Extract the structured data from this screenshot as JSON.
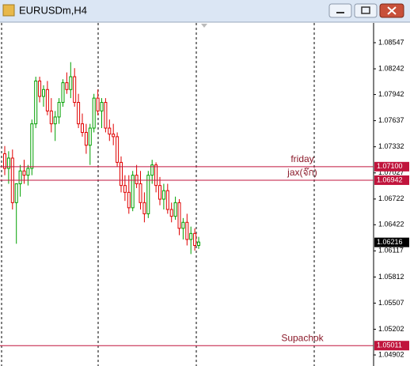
{
  "chart_data": {
    "type": "candlestick",
    "title": "EURUSDm,H4",
    "ylim": [
      1.04773,
      1.08787
    ],
    "yticks": [
      1.08547,
      1.08242,
      1.07942,
      1.07637,
      1.07332,
      1.07027,
      1.06722,
      1.06422,
      1.06117,
      1.05812,
      1.05507,
      1.05202,
      1.04902
    ],
    "up_color": "#00a000",
    "down_color": "#e00000",
    "open": [
      1.0725,
      1.0708,
      1.072,
      1.0668,
      1.069,
      1.0705,
      1.07,
      1.0708,
      1.076,
      1.081,
      1.0792,
      1.08,
      1.0775,
      1.076,
      1.0768,
      1.0785,
      1.0808,
      1.08,
      1.0815,
      1.0785,
      1.076,
      1.075,
      1.0735,
      1.0755,
      1.079,
      1.0775,
      1.0785,
      1.0755,
      1.0748,
      1.0745,
      1.0715,
      1.0688,
      1.068,
      1.0662,
      1.07,
      1.069,
      1.0668,
      1.0655,
      1.07,
      1.0712,
      1.0688,
      1.0672,
      1.0682,
      1.066,
      1.0652,
      1.0668,
      1.0638,
      1.0645,
      1.0625,
      1.0632,
      1.0618
    ],
    "high": [
      1.0734,
      1.0728,
      1.073,
      1.069,
      1.0712,
      1.0718,
      1.0712,
      1.0765,
      1.0815,
      1.0815,
      1.0805,
      1.081,
      1.079,
      1.0775,
      1.079,
      1.0812,
      1.082,
      1.0832,
      1.0825,
      1.0795,
      1.0772,
      1.076,
      1.076,
      1.0795,
      1.08,
      1.079,
      1.079,
      1.0765,
      1.076,
      1.075,
      1.0722,
      1.07,
      1.07,
      1.0705,
      1.0712,
      1.0705,
      1.068,
      1.0705,
      1.0718,
      1.0715,
      1.0698,
      1.069,
      1.069,
      1.0668,
      1.0675,
      1.0672,
      1.065,
      1.0655,
      1.064,
      1.0638,
      1.0628
    ],
    "low": [
      1.07,
      1.069,
      1.066,
      1.062,
      1.0675,
      1.069,
      1.0688,
      1.07,
      1.0755,
      1.0785,
      1.078,
      1.077,
      1.075,
      1.074,
      1.076,
      1.078,
      1.0795,
      1.079,
      1.078,
      1.0755,
      1.0745,
      1.0725,
      1.0712,
      1.075,
      1.077,
      1.0755,
      1.075,
      1.074,
      1.0735,
      1.071,
      1.068,
      1.067,
      1.0655,
      1.0658,
      1.0685,
      1.066,
      1.0645,
      1.065,
      1.069,
      1.068,
      1.0665,
      1.066,
      1.0655,
      1.0645,
      1.0648,
      1.063,
      1.0625,
      1.0618,
      1.0608,
      1.0612,
      1.0614
    ],
    "close": [
      1.0708,
      1.072,
      1.0668,
      1.069,
      1.0705,
      1.07,
      1.0708,
      1.076,
      1.081,
      1.0792,
      1.08,
      1.0775,
      1.076,
      1.0768,
      1.0785,
      1.0808,
      1.08,
      1.0815,
      1.0785,
      1.076,
      1.075,
      1.0735,
      1.0755,
      1.079,
      1.0775,
      1.0785,
      1.0755,
      1.0748,
      1.0745,
      1.0715,
      1.0688,
      1.068,
      1.0662,
      1.07,
      1.069,
      1.0668,
      1.0655,
      1.07,
      1.0712,
      1.0688,
      1.0672,
      1.0682,
      1.066,
      1.0652,
      1.0668,
      1.0638,
      1.0645,
      1.0625,
      1.0632,
      1.0618,
      1.0622
    ],
    "current_price": 1.06216,
    "levels": [
      {
        "name": "friday",
        "value": 1.071,
        "label": "1.07100",
        "color": "#c0143c"
      },
      {
        "name": "jax(จ๊ก)",
        "value": 1.06942,
        "label": "1.06942",
        "color": "#c0143c"
      },
      {
        "name": "Supachok",
        "value": 1.05011,
        "label": "1.05011",
        "color": "#c0143c"
      }
    ]
  }
}
